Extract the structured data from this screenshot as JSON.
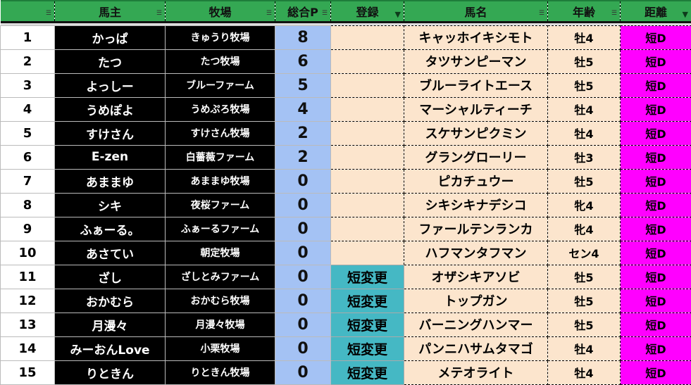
{
  "headers": [
    "",
    "馬主",
    "牧場",
    "総合P",
    "登録",
    "馬名",
    "年齢",
    "距離"
  ],
  "filter_active": [
    false,
    false,
    false,
    false,
    true,
    false,
    false,
    true
  ],
  "colors": {
    "header": "#34a853",
    "owner_bg": "#000000",
    "points_bg": "#a4c2f4",
    "peach": "#fce5cd",
    "registered": "#45b8c4",
    "distance": "#ff00ff"
  },
  "rows": [
    {
      "n": "1",
      "owner": "かっぱ",
      "ranch": "きゅうり牧場",
      "p": "8",
      "reg": "",
      "horse": "キャッホイキシモト",
      "age": "牡4",
      "dist": "短D"
    },
    {
      "n": "2",
      "owner": "たつ",
      "ranch": "たつ牧場",
      "p": "6",
      "reg": "",
      "horse": "タツサンピーマン",
      "age": "牡5",
      "dist": "短D"
    },
    {
      "n": "3",
      "owner": "よっしー",
      "ranch": "ブルーファーム",
      "p": "5",
      "reg": "",
      "horse": "ブルーライトエース",
      "age": "牡5",
      "dist": "短D"
    },
    {
      "n": "4",
      "owner": "うめぽよ",
      "ranch": "うめぷろ牧場",
      "p": "4",
      "reg": "",
      "horse": "マーシャルティーチ",
      "age": "牡4",
      "dist": "短D"
    },
    {
      "n": "5",
      "owner": "すけさん",
      "ranch": "すけさん牧場",
      "p": "2",
      "reg": "",
      "horse": "スケサンピクミン",
      "age": "牡4",
      "dist": "短D"
    },
    {
      "n": "6",
      "owner": "E-zen",
      "ranch": "白薔薇ファーム",
      "p": "2",
      "reg": "",
      "horse": "グラングローリー",
      "age": "牡3",
      "dist": "短D"
    },
    {
      "n": "7",
      "owner": "あままゆ",
      "ranch": "あままゆ牧場",
      "p": "0",
      "reg": "",
      "horse": "ピカチュウー",
      "age": "牡5",
      "dist": "短D"
    },
    {
      "n": "8",
      "owner": "シキ",
      "ranch": "夜桜ファーム",
      "p": "0",
      "reg": "",
      "horse": "シキシキナデシコ",
      "age": "牝4",
      "dist": "短D"
    },
    {
      "n": "9",
      "owner": "ふぁーる。",
      "ranch": "ふぁーるファーム",
      "p": "0",
      "reg": "",
      "horse": "ファールテンランカ",
      "age": "牝4",
      "dist": "短D"
    },
    {
      "n": "10",
      "owner": "あさてい",
      "ranch": "朝定牧場",
      "p": "0",
      "reg": "",
      "horse": "ハフマンタフマン",
      "age": "セン4",
      "dist": "短D"
    },
    {
      "n": "11",
      "owner": "ざし",
      "ranch": "ざしとみファーム",
      "p": "0",
      "reg": "短変更",
      "horse": "オザシキアソビ",
      "age": "牡5",
      "dist": "短D"
    },
    {
      "n": "12",
      "owner": "おかむら",
      "ranch": "おかむら牧場",
      "p": "0",
      "reg": "短変更",
      "horse": "トップガン",
      "age": "牡5",
      "dist": "短D"
    },
    {
      "n": "13",
      "owner": "月漫々",
      "ranch": "月漫々牧場",
      "p": "0",
      "reg": "短変更",
      "horse": "バーニングハンマー",
      "age": "牡5",
      "dist": "短D"
    },
    {
      "n": "14",
      "owner": "みーおんLove",
      "ranch": "小栗牧場",
      "p": "0",
      "reg": "短変更",
      "horse": "パンニハサムタマゴ",
      "age": "牡4",
      "dist": "短D"
    },
    {
      "n": "15",
      "owner": "りときん",
      "ranch": "りときん牧場",
      "p": "0",
      "reg": "短変更",
      "horse": "メテオライト",
      "age": "牡4",
      "dist": "短D"
    }
  ]
}
